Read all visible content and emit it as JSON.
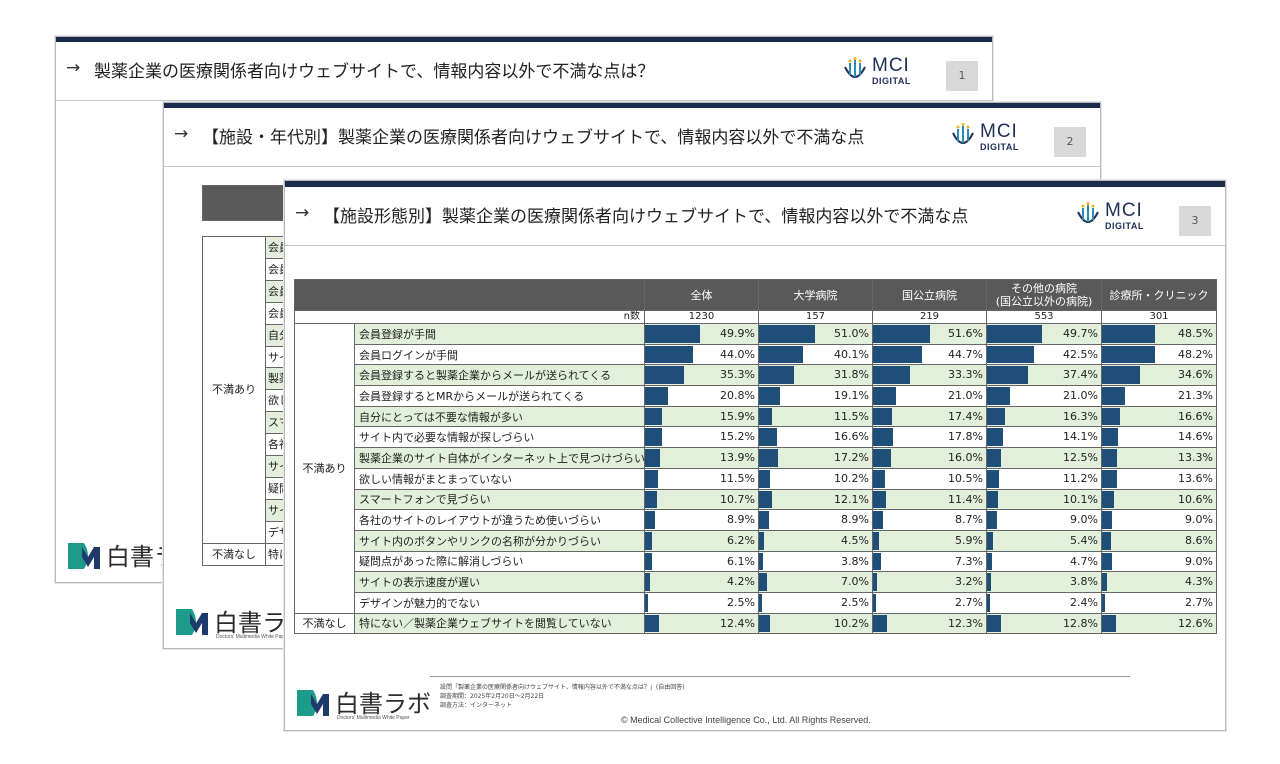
{
  "brand": {
    "name": "白書ラボ",
    "sub": "Doctors' Multimedia White Paper"
  },
  "logo": {
    "mci": "MCI",
    "digital": "DIGITAL"
  },
  "slides": [
    {
      "arrow": "→",
      "title": "製薬企業の医療関係者向けウェブサイトで、情報内容以外で不満な点は？",
      "page": "1"
    },
    {
      "arrow": "→",
      "title": "【施設・年代別】製薬企業の医療関係者向けウェブサイトで、情報内容以外で不満な点",
      "page": "2"
    },
    {
      "arrow": "→",
      "title": "【施設形態別】製薬企業の医療関係者向けウェブサイトで、情報内容以外で不満な点",
      "page": "3"
    }
  ],
  "slide2_fragments": {
    "cat_yes": "不満あり",
    "cat_no": "不満なし",
    "stubs": [
      "会員",
      "会員",
      "会員",
      "会員",
      "自分",
      "サイ",
      "製薬",
      "欲し",
      "スマ",
      "各社",
      "サイ",
      "疑問",
      "サイ",
      "デザ"
    ],
    "last_stub": "特に"
  },
  "table": {
    "columns": [
      "全体",
      "大学病院",
      "国公立病院",
      "その他の病院\n(国公立以外の病院)",
      "診療所・クリニック"
    ],
    "n_label": "n数",
    "n_values": [
      "1230",
      "157",
      "219",
      "553",
      "301"
    ],
    "cat_yes": "不満あり",
    "cat_no": "不満なし",
    "rows": [
      {
        "label": "会員登録が手間",
        "values": [
          49.9,
          51.0,
          51.6,
          49.7,
          48.5
        ],
        "text": [
          "49.9%",
          "51.0%",
          "51.6%",
          "49.7%",
          "48.5%"
        ]
      },
      {
        "label": "会員ログインが手間",
        "values": [
          44.0,
          40.1,
          44.7,
          42.5,
          48.2
        ],
        "text": [
          "44.0%",
          "40.1%",
          "44.7%",
          "42.5%",
          "48.2%"
        ]
      },
      {
        "label": "会員登録すると製薬企業からメールが送られてくる",
        "values": [
          35.3,
          31.8,
          33.3,
          37.4,
          34.6
        ],
        "text": [
          "35.3%",
          "31.8%",
          "33.3%",
          "37.4%",
          "34.6%"
        ]
      },
      {
        "label": "会員登録するとMRからメールが送られてくる",
        "values": [
          20.8,
          19.1,
          21.0,
          21.0,
          21.3
        ],
        "text": [
          "20.8%",
          "19.1%",
          "21.0%",
          "21.0%",
          "21.3%"
        ]
      },
      {
        "label": "自分にとっては不要な情報が多い",
        "values": [
          15.9,
          11.5,
          17.4,
          16.3,
          16.6
        ],
        "text": [
          "15.9%",
          "11.5%",
          "17.4%",
          "16.3%",
          "16.6%"
        ]
      },
      {
        "label": "サイト内で必要な情報が探しづらい",
        "values": [
          15.2,
          16.6,
          17.8,
          14.1,
          14.6
        ],
        "text": [
          "15.2%",
          "16.6%",
          "17.8%",
          "14.1%",
          "14.6%"
        ]
      },
      {
        "label": "製薬企業のサイト自体がインターネット上で見つけづらい",
        "values": [
          13.9,
          17.2,
          16.0,
          12.5,
          13.3
        ],
        "text": [
          "13.9%",
          "17.2%",
          "16.0%",
          "12.5%",
          "13.3%"
        ]
      },
      {
        "label": "欲しい情報がまとまっていない",
        "values": [
          11.5,
          10.2,
          10.5,
          11.2,
          13.6
        ],
        "text": [
          "11.5%",
          "10.2%",
          "10.5%",
          "11.2%",
          "13.6%"
        ]
      },
      {
        "label": "スマートフォンで見づらい",
        "values": [
          10.7,
          12.1,
          11.4,
          10.1,
          10.6
        ],
        "text": [
          "10.7%",
          "12.1%",
          "11.4%",
          "10.1%",
          "10.6%"
        ]
      },
      {
        "label": "各社のサイトのレイアウトが違うため使いづらい",
        "values": [
          8.9,
          8.9,
          8.7,
          9.0,
          9.0
        ],
        "text": [
          "8.9%",
          "8.9%",
          "8.7%",
          "9.0%",
          "9.0%"
        ]
      },
      {
        "label": "サイト内のボタンやリンクの名称が分かりづらい",
        "values": [
          6.2,
          4.5,
          5.9,
          5.4,
          8.6
        ],
        "text": [
          "6.2%",
          "4.5%",
          "5.9%",
          "5.4%",
          "8.6%"
        ]
      },
      {
        "label": "疑問点があった際に解消しづらい",
        "values": [
          6.1,
          3.8,
          7.3,
          4.7,
          9.0
        ],
        "text": [
          "6.1%",
          "3.8%",
          "7.3%",
          "4.7%",
          "9.0%"
        ]
      },
      {
        "label": "サイトの表示速度が遅い",
        "values": [
          4.2,
          7.0,
          3.2,
          3.8,
          4.3
        ],
        "text": [
          "4.2%",
          "7.0%",
          "3.2%",
          "3.8%",
          "4.3%"
        ]
      },
      {
        "label": "デザインが魅力的でない",
        "values": [
          2.5,
          2.5,
          2.7,
          2.4,
          2.7
        ],
        "text": [
          "2.5%",
          "2.5%",
          "2.7%",
          "2.4%",
          "2.7%"
        ]
      }
    ],
    "last_row": {
      "label": "特にない／製薬企業ウェブサイトを閲覧していない",
      "values": [
        12.4,
        10.2,
        12.3,
        12.8,
        12.6
      ],
      "text": [
        "12.4%",
        "10.2%",
        "12.3%",
        "12.8%",
        "12.6%"
      ]
    },
    "bar_color": "#1f4e79",
    "shade_color": "#e2efda"
  },
  "footnotes": [
    "設問「製薬企業の医療関係者向けウェブサイト、情報内容以外で不満な点は？」(自由回答)",
    "調査期間：2025年2月20日～2月22日",
    "調査方法：インターネット"
  ],
  "copyright": "©  Medical Collective Intelligence Co., Ltd.  All Rights Reserved."
}
